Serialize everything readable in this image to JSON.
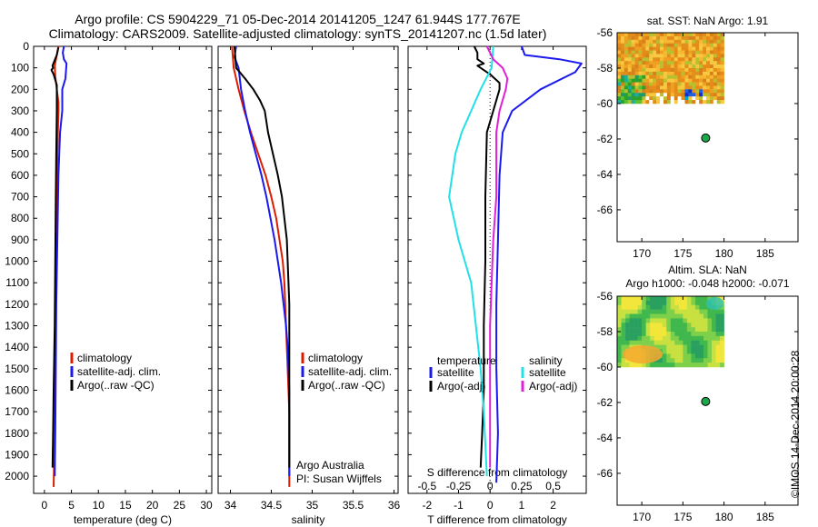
{
  "header": {
    "line1": "Argo profile: CS 5904229_71 05-Dec-2014 20141205_1247 61.944S 177.767E",
    "line2": "Climatology: CARS2009. Satellite-adjusted climatology: synTS_20141207.nc (1.5d later)"
  },
  "stamp": "©IMOS 14-Dec-2014 20:00:28",
  "colors": {
    "climatology": "#dd1c00",
    "satellite": "#1a1aee",
    "argo": "#000000",
    "cyan": "#22e0e8",
    "magenta": "#e020d8",
    "marker": "#1aa84a"
  },
  "chart_data": [
    {
      "type": "line",
      "id": "temperature",
      "xlabel": "temperature (deg C)",
      "ylabel": "",
      "xlim": [
        -2,
        31
      ],
      "ylim": [
        2080,
        0
      ],
      "xticks": [
        0,
        5,
        10,
        15,
        20,
        25,
        30
      ],
      "yticks": [
        0,
        100,
        200,
        300,
        400,
        500,
        600,
        700,
        800,
        900,
        1000,
        1100,
        1200,
        1300,
        1400,
        1500,
        1600,
        1700,
        1800,
        1900,
        2000
      ],
      "legend": [
        "climatology",
        "satellite-adj. clim.",
        "Argo(..raw -QC)"
      ],
      "series": [
        {
          "name": "climatology",
          "color": "#dd1c00",
          "points": [
            [
              2.6,
              0
            ],
            [
              2.3,
              40
            ],
            [
              1.9,
              90
            ],
            [
              2.0,
              140
            ],
            [
              2.3,
              200
            ],
            [
              2.6,
              260
            ],
            [
              2.6,
              300
            ],
            [
              2.5,
              400
            ],
            [
              2.4,
              500
            ],
            [
              2.3,
              700
            ],
            [
              2.2,
              900
            ],
            [
              2.1,
              1200
            ],
            [
              2.0,
              1500
            ],
            [
              1.9,
              1800
            ],
            [
              1.7,
              2050
            ]
          ]
        },
        {
          "name": "satellite-adj. clim.",
          "color": "#1a1aee",
          "points": [
            [
              3.6,
              0
            ],
            [
              3.4,
              30
            ],
            [
              3.6,
              60
            ],
            [
              4.1,
              80
            ],
            [
              3.9,
              150
            ],
            [
              3.3,
              200
            ],
            [
              3.3,
              300
            ],
            [
              2.9,
              400
            ],
            [
              2.6,
              600
            ],
            [
              2.4,
              900
            ],
            [
              2.2,
              1200
            ],
            [
              2.1,
              1500
            ],
            [
              2.0,
              1800
            ],
            [
              1.9,
              2000
            ]
          ]
        },
        {
          "name": "Argo(..raw -QC)",
          "color": "#000000",
          "points": [
            [
              2.6,
              5
            ],
            [
              2.3,
              40
            ],
            [
              1.5,
              90
            ],
            [
              1.6,
              100
            ],
            [
              1.3,
              110
            ],
            [
              1.7,
              130
            ],
            [
              2.3,
              180
            ],
            [
              2.3,
              250
            ],
            [
              2.3,
              300
            ],
            [
              2.2,
              500
            ],
            [
              2.1,
              700
            ],
            [
              2.0,
              1000
            ],
            [
              1.9,
              1300
            ],
            [
              1.7,
              1600
            ],
            [
              1.6,
              1800
            ],
            [
              1.5,
              1960
            ]
          ]
        }
      ]
    },
    {
      "type": "line",
      "id": "salinity",
      "xlabel": "salinity",
      "xlim": [
        33.85,
        36.05
      ],
      "ylim": [
        2080,
        0
      ],
      "xticks": [
        34,
        34.5,
        35,
        35.5,
        36
      ],
      "xticklabels": [
        "34",
        "34.5",
        "35",
        "35.5",
        "36"
      ],
      "legend": [
        "climatology",
        "satellite-adj. clim.",
        "Argo(..raw -QC)"
      ],
      "annotations": [
        "Argo Australia",
        "PI: Susan Wijffels"
      ],
      "series": [
        {
          "name": "climatology",
          "color": "#dd1c00",
          "points": [
            [
              34.02,
              0
            ],
            [
              34.04,
              100
            ],
            [
              34.1,
              200
            ],
            [
              34.17,
              300
            ],
            [
              34.25,
              400
            ],
            [
              34.34,
              500
            ],
            [
              34.43,
              600
            ],
            [
              34.5,
              700
            ],
            [
              34.56,
              800
            ],
            [
              34.6,
              900
            ],
            [
              34.64,
              1000
            ],
            [
              34.66,
              1100
            ],
            [
              34.68,
              1300
            ],
            [
              34.7,
              1500
            ],
            [
              34.72,
              1700
            ],
            [
              34.72,
              1900
            ],
            [
              34.72,
              2050
            ]
          ]
        },
        {
          "name": "satellite-adj. clim.",
          "color": "#1a1aee",
          "points": [
            [
              34.07,
              0
            ],
            [
              34.05,
              50
            ],
            [
              34.1,
              100
            ],
            [
              34.13,
              200
            ],
            [
              34.18,
              300
            ],
            [
              34.24,
              400
            ],
            [
              34.31,
              500
            ],
            [
              34.38,
              600
            ],
            [
              34.44,
              700
            ],
            [
              34.49,
              800
            ],
            [
              34.54,
              900
            ],
            [
              34.58,
              1000
            ],
            [
              34.62,
              1100
            ],
            [
              34.65,
              1200
            ],
            [
              34.68,
              1300
            ],
            [
              34.7,
              1400
            ],
            [
              34.71,
              1500
            ],
            [
              34.72,
              1600
            ],
            [
              34.72,
              2000
            ]
          ]
        },
        {
          "name": "Argo(..raw -QC)",
          "color": "#000000",
          "points": [
            [
              34.05,
              0
            ],
            [
              34.07,
              100
            ],
            [
              34.18,
              150
            ],
            [
              34.28,
              200
            ],
            [
              34.36,
              250
            ],
            [
              34.42,
              300
            ],
            [
              34.46,
              400
            ],
            [
              34.52,
              500
            ],
            [
              34.58,
              600
            ],
            [
              34.63,
              700
            ],
            [
              34.66,
              800
            ],
            [
              34.69,
              900
            ],
            [
              34.7,
              1000
            ],
            [
              34.72,
              1200
            ],
            [
              34.72,
              1500
            ],
            [
              34.72,
              1800
            ],
            [
              34.72,
              1960
            ]
          ]
        }
      ]
    },
    {
      "type": "line",
      "id": "difference",
      "xlabel": "T difference from climatology",
      "x2label": "S difference from climatology",
      "xlim": [
        -2.6,
        3.05
      ],
      "ylim": [
        2080,
        0
      ],
      "xticks": [
        -2,
        -1,
        0,
        1,
        2
      ],
      "x2ticks": [
        "-0.5",
        "-0.25",
        "0",
        "0.25",
        "0.5"
      ],
      "legend_left_title": "temperature",
      "legend_right_title": "salinity",
      "legend": [
        "satellite",
        "Argo(-adj)",
        "satellite",
        "Argo(-adj)"
      ],
      "series": [
        {
          "name": "temperature satellite",
          "color": "#1a1aee",
          "points": [
            [
              1.0,
              0
            ],
            [
              1.1,
              40
            ],
            [
              2.2,
              60
            ],
            [
              2.9,
              80
            ],
            [
              2.7,
              120
            ],
            [
              1.6,
              200
            ],
            [
              0.7,
              300
            ],
            [
              0.4,
              400
            ],
            [
              0.3,
              600
            ],
            [
              0.25,
              900
            ],
            [
              0.2,
              1200
            ],
            [
              0.2,
              1500
            ],
            [
              0.25,
              1800
            ],
            [
              0.2,
              2030
            ]
          ]
        },
        {
          "name": "temperature Argo(-adj)",
          "color": "#000000",
          "points": [
            [
              -0.5,
              0
            ],
            [
              -0.4,
              30
            ],
            [
              -0.4,
              60
            ],
            [
              -0.2,
              80
            ],
            [
              -0.4,
              90
            ],
            [
              0.0,
              130
            ],
            [
              0.3,
              170
            ],
            [
              0.3,
              200
            ],
            [
              0.1,
              300
            ],
            [
              -0.1,
              400
            ],
            [
              -0.15,
              700
            ],
            [
              -0.15,
              1000
            ],
            [
              -0.2,
              1300
            ],
            [
              -0.2,
              1600
            ],
            [
              -0.25,
              1800
            ],
            [
              -0.3,
              1960
            ]
          ]
        },
        {
          "name": "salinity satellite",
          "color": "#22e0e8",
          "points": [
            [
              0.1,
              0
            ],
            [
              0.05,
              100
            ],
            [
              -0.3,
              200
            ],
            [
              -0.6,
              300
            ],
            [
              -0.9,
              400
            ],
            [
              -1.1,
              500
            ],
            [
              -1.2,
              600
            ],
            [
              -1.3,
              700
            ],
            [
              -1.0,
              900
            ],
            [
              -0.8,
              1000
            ],
            [
              -0.6,
              1100
            ],
            [
              -0.45,
              1300
            ],
            [
              -0.3,
              1500
            ],
            [
              -0.2,
              1700
            ],
            [
              -0.1,
              2000
            ]
          ]
        },
        {
          "name": "salinity Argo(-adj)",
          "color": "#e020d8",
          "points": [
            [
              -0.1,
              0
            ],
            [
              0.1,
              60
            ],
            [
              0.4,
              100
            ],
            [
              0.55,
              150
            ],
            [
              0.5,
              200
            ],
            [
              0.3,
              300
            ],
            [
              0.2,
              400
            ],
            [
              0.2,
              500
            ],
            [
              0.2,
              700
            ],
            [
              0.1,
              900
            ],
            [
              0.05,
              1100
            ],
            [
              0.0,
              1300
            ],
            [
              0.0,
              1500
            ],
            [
              0.0,
              1700
            ],
            [
              0.0,
              1960
            ]
          ]
        }
      ]
    },
    {
      "type": "heatmap",
      "id": "sst",
      "title": "sat. SST: NaN Argo: 1.91",
      "xlim": [
        167,
        189
      ],
      "ylim": [
        -67.8,
        -56
      ],
      "xticks": [
        170,
        175,
        180,
        185
      ],
      "yticks": [
        -56,
        -58,
        -60,
        -62,
        -64,
        -66
      ],
      "data_extent": {
        "lon": [
          167,
          180
        ],
        "lat": [
          -60,
          -56
        ]
      },
      "argo_position": {
        "lon": 177.767,
        "lat": -61.944
      }
    },
    {
      "type": "heatmap",
      "id": "sla",
      "title": "Altim. SLA: NaN",
      "subtitle": "Argo h1000: -0.048 h2000: -0.071",
      "xlim": [
        167,
        189
      ],
      "ylim": [
        -67.8,
        -56
      ],
      "xticks": [
        170,
        175,
        180,
        185
      ],
      "yticks": [
        -56,
        -58,
        -60,
        -62,
        -64,
        -66
      ],
      "data_extent": {
        "lon": [
          167,
          180
        ],
        "lat": [
          -60,
          -56
        ]
      },
      "argo_position": {
        "lon": 177.767,
        "lat": -61.944
      }
    }
  ]
}
